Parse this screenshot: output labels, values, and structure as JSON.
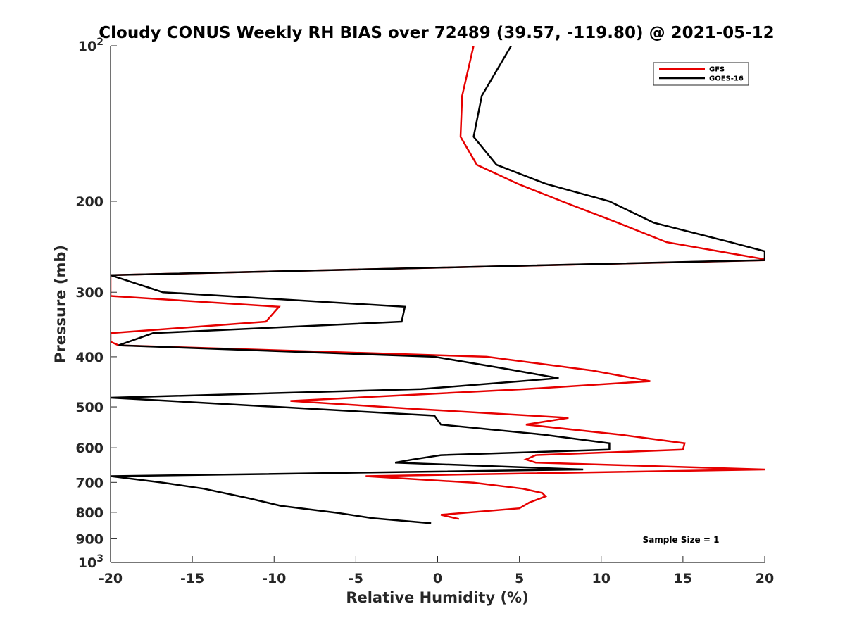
{
  "chart_data": {
    "type": "line",
    "title": "Cloudy CONUS Weekly RH BIAS over 72489 (39.57, -119.80) @ 2021-05-12",
    "xlabel": "Relative Humidity (%)",
    "ylabel": "Pressure (mb)",
    "xlim": [
      -20,
      20
    ],
    "ylim": [
      100,
      1000
    ],
    "yscale": "log",
    "y_reversed": true,
    "xticks": [
      -20,
      -15,
      -10,
      -5,
      0,
      5,
      10,
      15,
      20
    ],
    "xtick_labels": [
      "-20",
      "-15",
      "-10",
      "-5",
      "0",
      "5",
      "10",
      "15",
      "20"
    ],
    "yticks": [
      {
        "value": 100,
        "base": "10",
        "exp": "2"
      },
      {
        "value": 200,
        "label": "200"
      },
      {
        "value": 300,
        "label": "300"
      },
      {
        "value": 400,
        "label": "400"
      },
      {
        "value": 500,
        "label": "500"
      },
      {
        "value": 600,
        "label": "600"
      },
      {
        "value": 700,
        "label": "700"
      },
      {
        "value": 800,
        "label": "800"
      },
      {
        "value": 900,
        "label": "900"
      },
      {
        "value": 1000,
        "base": "10",
        "exp": "3"
      }
    ],
    "grid": false,
    "legend_position": "top-right",
    "annotation": "Sample Size = 1",
    "series": [
      {
        "name": "GFS",
        "color": "#e60000",
        "points": [
          [
            2.2,
            100
          ],
          [
            1.5,
            125
          ],
          [
            1.4,
            150
          ],
          [
            2.4,
            170
          ],
          [
            4.9,
            185
          ],
          [
            7.6,
            200
          ],
          [
            11.0,
            220
          ],
          [
            14.0,
            240
          ],
          [
            20.3,
            260
          ],
          [
            -20,
            278
          ],
          [
            -20,
            305
          ],
          [
            -9.7,
            320
          ],
          [
            -10.5,
            342
          ],
          [
            -20,
            360
          ],
          [
            -20,
            374
          ],
          [
            -19.5,
            380
          ],
          [
            3.0,
            400
          ],
          [
            9.4,
            425
          ],
          [
            13.0,
            446
          ],
          [
            5.4,
            462
          ],
          [
            -9.0,
            487
          ],
          [
            -1.2,
            505
          ],
          [
            8.0,
            525
          ],
          [
            5.4,
            541
          ],
          [
            11.2,
            566
          ],
          [
            15.1,
            588
          ],
          [
            15.0,
            605
          ],
          [
            6.0,
            620
          ],
          [
            5.4,
            632
          ],
          [
            6.0,
            641
          ],
          [
            20.0,
            661
          ],
          [
            -4.4,
            681
          ],
          [
            2.2,
            701
          ],
          [
            5.2,
            720
          ],
          [
            6.4,
            734
          ],
          [
            6.6,
            745
          ],
          [
            5.6,
            766
          ],
          [
            5.0,
            786
          ],
          [
            0.2,
            809
          ],
          [
            1.3,
            824
          ]
        ]
      },
      {
        "name": "GOES-16",
        "color": "#000000",
        "points": [
          [
            4.5,
            100
          ],
          [
            2.7,
            125
          ],
          [
            2.2,
            150
          ],
          [
            3.6,
            170
          ],
          [
            6.6,
            185
          ],
          [
            10.5,
            200
          ],
          [
            13.2,
            220
          ],
          [
            17.9,
            240
          ],
          [
            20.0,
            250
          ],
          [
            20.0,
            260
          ],
          [
            -20,
            278
          ],
          [
            -16.8,
            300
          ],
          [
            -2.0,
            320
          ],
          [
            -2.2,
            342
          ],
          [
            -17.4,
            360
          ],
          [
            -19.5,
            380
          ],
          [
            -0.2,
            400
          ],
          [
            3.8,
            420
          ],
          [
            7.4,
            440
          ],
          [
            -1.0,
            462
          ],
          [
            -20,
            480
          ],
          [
            -0.2,
            520
          ],
          [
            0.2,
            541
          ],
          [
            6.5,
            566
          ],
          [
            10.5,
            588
          ],
          [
            10.5,
            605
          ],
          [
            0.2,
            620
          ],
          [
            -1.5,
            632
          ],
          [
            -2.6,
            641
          ],
          [
            8.9,
            661
          ],
          [
            -20,
            681
          ],
          [
            -16.8,
            701
          ],
          [
            -14.3,
            720
          ],
          [
            -11.5,
            752
          ],
          [
            -9.6,
            777
          ],
          [
            -6.1,
            802
          ],
          [
            -4.0,
            821
          ],
          [
            -0.4,
            840
          ]
        ]
      }
    ]
  }
}
